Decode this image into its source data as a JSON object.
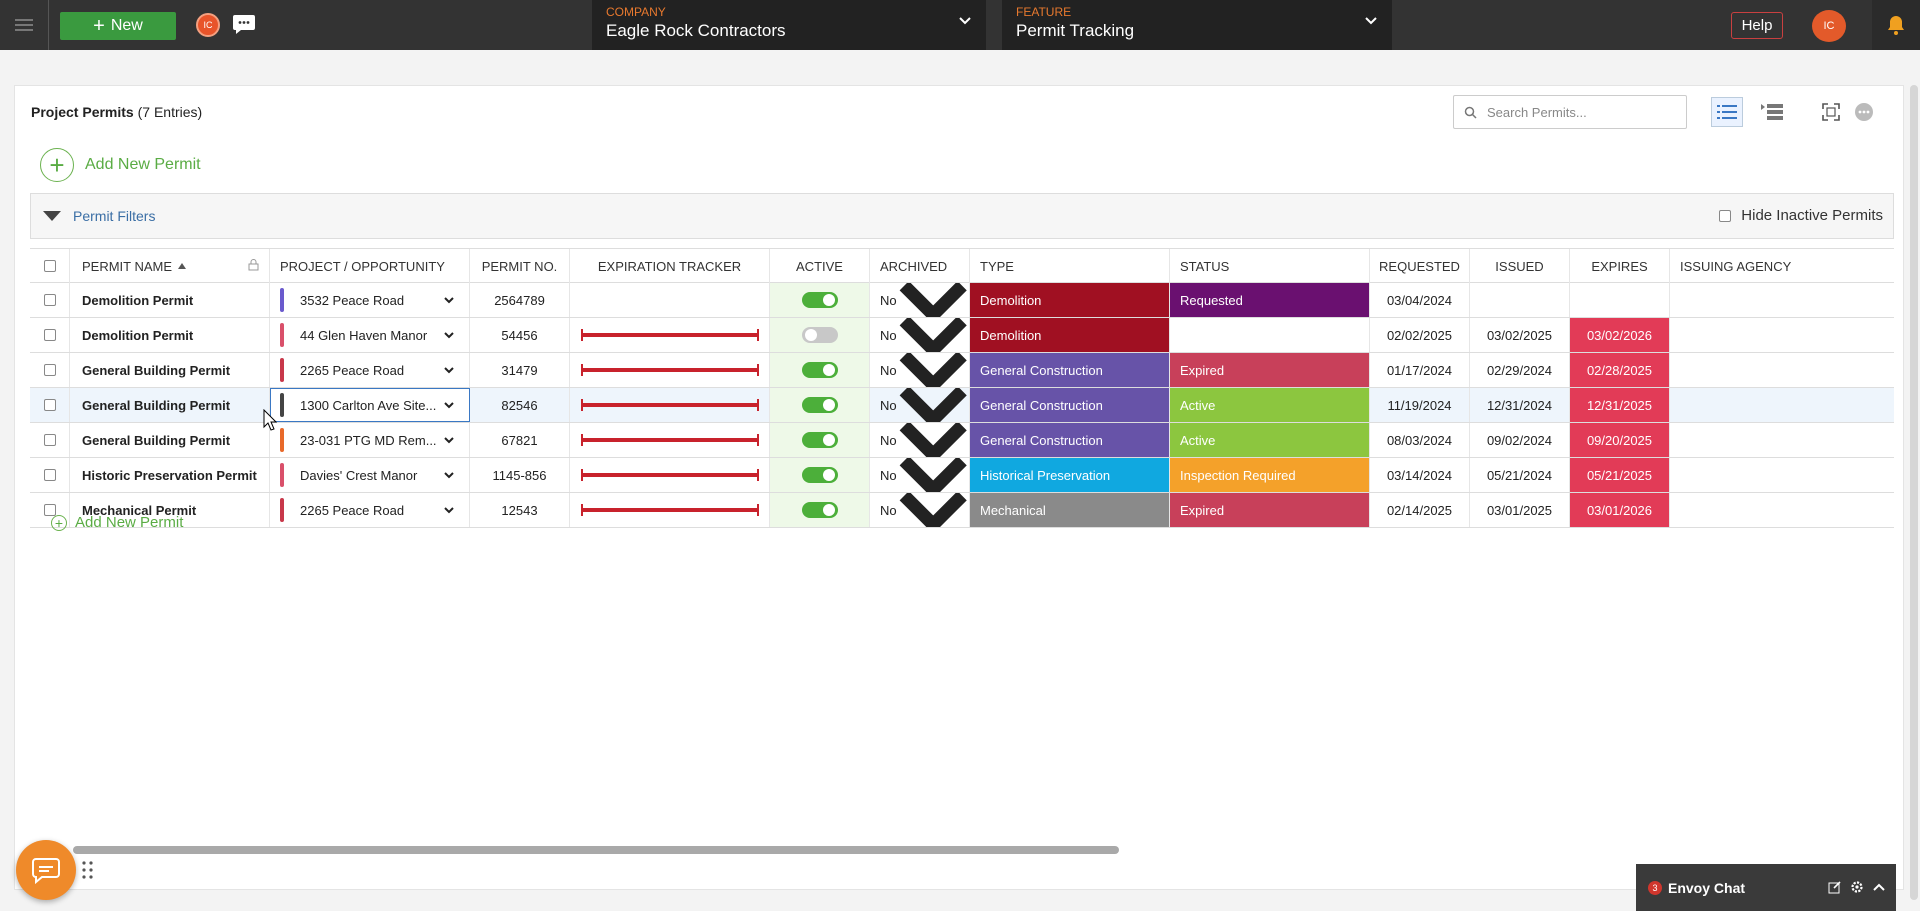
{
  "topbar": {
    "new_label": "New",
    "user_initials": "IC",
    "company_label": "COMPANY",
    "company_value": "Eagle Rock Contractors",
    "feature_label": "FEATURE",
    "feature_value": "Permit Tracking",
    "help_label": "Help"
  },
  "page": {
    "title": "Project Permits",
    "entries": "(7 Entries)",
    "search_placeholder": "Search Permits...",
    "add_new_top": "Add New Permit",
    "add_new_bottom": "Add New Permit",
    "filters_label": "Permit Filters",
    "hide_inactive_label": "Hide Inactive Permits"
  },
  "columns": {
    "name": "PERMIT NAME",
    "project": "PROJECT / OPPORTUNITY",
    "permit_no": "PERMIT NO.",
    "expiration": "EXPIRATION TRACKER",
    "active": "ACTIVE",
    "archived": "ARCHIVED",
    "type": "TYPE",
    "status": "STATUS",
    "requested": "REQUESTED",
    "issued": "ISSUED",
    "expires": "EXPIRES",
    "agency": "ISSUING AGENCY"
  },
  "rows": [
    {
      "name": "Demolition Permit",
      "project": "3532 Peace Road",
      "project_color": "#6a5acd",
      "permit_no": "2564789",
      "tracker": false,
      "active": true,
      "archived": "No",
      "type": "Demolition",
      "type_color": "#a01022",
      "status": "Requested",
      "status_color": "#6a1070",
      "requested": "03/04/2024",
      "issued": "",
      "expires": "",
      "expires_color": "",
      "agency": ""
    },
    {
      "name": "Demolition Permit",
      "project": "44 Glen Haven Manor",
      "project_color": "#d9506a",
      "permit_no": "54456",
      "tracker": true,
      "active": false,
      "archived": "No",
      "type": "Demolition",
      "type_color": "#a01022",
      "status": "",
      "status_color": "",
      "requested": "02/02/2025",
      "issued": "03/02/2025",
      "expires": "03/02/2026",
      "expires_color": "#e23b57",
      "agency": ""
    },
    {
      "name": "General Building Permit",
      "project": "2265 Peace Road",
      "project_color": "#c8384a",
      "permit_no": "31479",
      "tracker": true,
      "active": true,
      "archived": "No",
      "type": "General Construction",
      "type_color": "#6753a8",
      "status": "Expired",
      "status_color": "#c8405a",
      "requested": "01/17/2024",
      "issued": "02/29/2024",
      "expires": "02/28/2025",
      "expires_color": "#e23b57",
      "agency": ""
    },
    {
      "name": "General Building Permit",
      "project": "1300 Carlton Ave Site...",
      "project_color": "#444444",
      "permit_no": "82546",
      "tracker": true,
      "active": true,
      "archived": "No",
      "type": "General Construction",
      "type_color": "#6753a8",
      "status": "Active",
      "status_color": "#8cc63f",
      "requested": "11/19/2024",
      "issued": "12/31/2024",
      "expires": "12/31/2025",
      "expires_color": "#e23b57",
      "agency": ""
    },
    {
      "name": "General Building Permit",
      "project": "23-031 PTG MD Rem...",
      "project_color": "#e8692a",
      "permit_no": "67821",
      "tracker": true,
      "active": true,
      "archived": "No",
      "type": "General Construction",
      "type_color": "#6753a8",
      "status": "Active",
      "status_color": "#8cc63f",
      "requested": "08/03/2024",
      "issued": "09/02/2024",
      "expires": "09/20/2025",
      "expires_color": "#e23b57",
      "agency": ""
    },
    {
      "name": "Historic Preservation Permit",
      "project": "Davies' Crest Manor",
      "project_color": "#d9506a",
      "permit_no": "1145-856",
      "tracker": true,
      "active": true,
      "archived": "No",
      "type": "Historical Preservation",
      "type_color": "#10a8e0",
      "status": "Inspection Required",
      "status_color": "#f4a12a",
      "requested": "03/14/2024",
      "issued": "05/21/2024",
      "expires": "05/21/2025",
      "expires_color": "#e23b57",
      "agency": ""
    },
    {
      "name": "Mechanical Permit",
      "project": "2265 Peace Road",
      "project_color": "#c8384a",
      "permit_no": "12543",
      "tracker": true,
      "active": true,
      "archived": "No",
      "type": "Mechanical",
      "type_color": "#8a8a8a",
      "status": "Expired",
      "status_color": "#c8405a",
      "requested": "02/14/2025",
      "issued": "03/01/2025",
      "expires": "03/01/2026",
      "expires_color": "#e23b57",
      "agency": ""
    }
  ],
  "chat": {
    "label": "Envoy Chat",
    "unread": "3"
  }
}
